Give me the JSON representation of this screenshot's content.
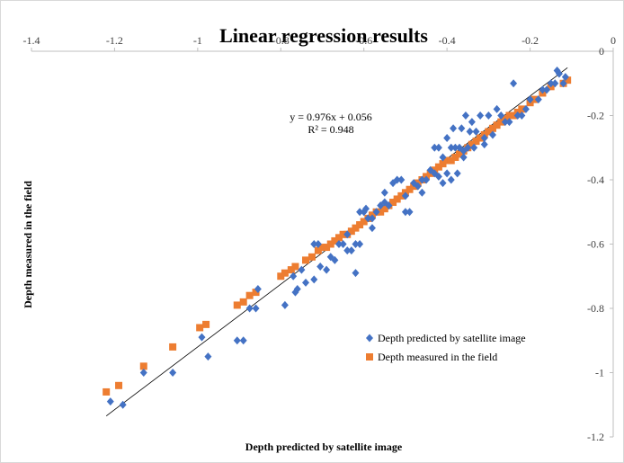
{
  "chart_data": {
    "type": "scatter",
    "title": "Linear regression results",
    "xlabel": "Depth predicted by satellite image",
    "ylabel": "Depth measured in the field",
    "xlim": [
      -1.4,
      0
    ],
    "ylim": [
      -1.2,
      0
    ],
    "x_ticks": [
      "-1.4",
      "-1.2",
      "-1",
      "-0.8",
      "-0.6",
      "-0.4",
      "-0.2",
      "0"
    ],
    "y_ticks": [
      "0",
      "-0.2",
      "-0.4",
      "-0.6",
      "-0.8",
      "-1",
      "-1.2"
    ],
    "x_axis_position": "top",
    "y_axis_position": "right",
    "grid": false,
    "legend_position": "bottom-right",
    "trendline": {
      "equation": "y = 0.976x + 0.056",
      "r2": "R² = 0.948",
      "slope": 0.976,
      "intercept": 0.056,
      "x_range": [
        -1.22,
        -0.11
      ]
    },
    "series": [
      {
        "name": "Depth predicted by satellite image",
        "color": "#4472c4",
        "marker": "diamond",
        "points": [
          [
            -1.21,
            -1.09
          ],
          [
            -1.18,
            -1.1
          ],
          [
            -1.13,
            -1.0
          ],
          [
            -1.06,
            -1.0
          ],
          [
            -0.99,
            -0.89
          ],
          [
            -0.975,
            -0.95
          ],
          [
            -0.905,
            -0.9
          ],
          [
            -0.89,
            -0.9
          ],
          [
            -0.875,
            -0.8
          ],
          [
            -0.86,
            -0.8
          ],
          [
            -0.855,
            -0.74
          ],
          [
            -0.79,
            -0.79
          ],
          [
            -0.77,
            -0.7
          ],
          [
            -0.765,
            -0.75
          ],
          [
            -0.76,
            -0.74
          ],
          [
            -0.75,
            -0.68
          ],
          [
            -0.74,
            -0.72
          ],
          [
            -0.72,
            -0.71
          ],
          [
            -0.72,
            -0.6
          ],
          [
            -0.71,
            -0.6
          ],
          [
            -0.705,
            -0.67
          ],
          [
            -0.69,
            -0.68
          ],
          [
            -0.68,
            -0.64
          ],
          [
            -0.67,
            -0.65
          ],
          [
            -0.66,
            -0.6
          ],
          [
            -0.65,
            -0.6
          ],
          [
            -0.64,
            -0.57
          ],
          [
            -0.63,
            -0.62
          ],
          [
            -0.62,
            -0.6
          ],
          [
            -0.61,
            -0.6
          ],
          [
            -0.62,
            -0.69
          ],
          [
            -0.61,
            -0.5
          ],
          [
            -0.6,
            -0.5
          ],
          [
            -0.595,
            -0.49
          ],
          [
            -0.59,
            -0.52
          ],
          [
            -0.58,
            -0.52
          ],
          [
            -0.57,
            -0.5
          ],
          [
            -0.56,
            -0.48
          ],
          [
            -0.55,
            -0.44
          ],
          [
            -0.54,
            -0.48
          ],
          [
            -0.53,
            -0.41
          ],
          [
            -0.52,
            -0.4
          ],
          [
            -0.51,
            -0.4
          ],
          [
            -0.5,
            -0.5
          ],
          [
            -0.49,
            -0.5
          ],
          [
            -0.48,
            -0.41
          ],
          [
            -0.47,
            -0.42
          ],
          [
            -0.46,
            -0.4
          ],
          [
            -0.45,
            -0.4
          ],
          [
            -0.44,
            -0.37
          ],
          [
            -0.43,
            -0.38
          ],
          [
            -0.43,
            -0.3
          ],
          [
            -0.42,
            -0.3
          ],
          [
            -0.41,
            -0.33
          ],
          [
            -0.41,
            -0.41
          ],
          [
            -0.4,
            -0.27
          ],
          [
            -0.4,
            -0.38
          ],
          [
            -0.39,
            -0.3
          ],
          [
            -0.39,
            -0.4
          ],
          [
            -0.385,
            -0.24
          ],
          [
            -0.38,
            -0.3
          ],
          [
            -0.375,
            -0.38
          ],
          [
            -0.37,
            -0.3
          ],
          [
            -0.365,
            -0.24
          ],
          [
            -0.36,
            -0.31
          ],
          [
            -0.355,
            -0.2
          ],
          [
            -0.35,
            -0.3
          ],
          [
            -0.345,
            -0.25
          ],
          [
            -0.34,
            -0.22
          ],
          [
            -0.335,
            -0.3
          ],
          [
            -0.33,
            -0.25
          ],
          [
            -0.32,
            -0.2
          ],
          [
            -0.31,
            -0.27
          ],
          [
            -0.3,
            -0.2
          ],
          [
            -0.29,
            -0.26
          ],
          [
            -0.28,
            -0.18
          ],
          [
            -0.27,
            -0.2
          ],
          [
            -0.26,
            -0.22
          ],
          [
            -0.25,
            -0.22
          ],
          [
            -0.24,
            -0.1
          ],
          [
            -0.23,
            -0.2
          ],
          [
            -0.22,
            -0.2
          ],
          [
            -0.21,
            -0.18
          ],
          [
            -0.2,
            -0.15
          ],
          [
            -0.18,
            -0.15
          ],
          [
            -0.17,
            -0.12
          ],
          [
            -0.16,
            -0.12
          ],
          [
            -0.15,
            -0.1
          ],
          [
            -0.14,
            -0.1
          ],
          [
            -0.135,
            -0.06
          ],
          [
            -0.13,
            -0.07
          ],
          [
            -0.12,
            -0.1
          ],
          [
            -0.115,
            -0.08
          ],
          [
            -0.46,
            -0.44
          ],
          [
            -0.5,
            -0.45
          ],
          [
            -0.55,
            -0.47
          ],
          [
            -0.58,
            -0.55
          ],
          [
            -0.64,
            -0.62
          ],
          [
            -0.42,
            -0.39
          ],
          [
            -0.36,
            -0.33
          ],
          [
            -0.31,
            -0.29
          ]
        ]
      },
      {
        "name": "Depth measured in the field",
        "color": "#ed7d31",
        "marker": "square",
        "points": [
          [
            -1.22,
            -1.06
          ],
          [
            -1.19,
            -1.04
          ],
          [
            -1.13,
            -0.98
          ],
          [
            -1.06,
            -0.92
          ],
          [
            -0.995,
            -0.86
          ],
          [
            -0.98,
            -0.85
          ],
          [
            -0.905,
            -0.79
          ],
          [
            -0.89,
            -0.78
          ],
          [
            -0.875,
            -0.76
          ],
          [
            -0.86,
            -0.75
          ],
          [
            -0.8,
            -0.7
          ],
          [
            -0.79,
            -0.69
          ],
          [
            -0.775,
            -0.68
          ],
          [
            -0.765,
            -0.67
          ],
          [
            -0.74,
            -0.65
          ],
          [
            -0.725,
            -0.64
          ],
          [
            -0.71,
            -0.62
          ],
          [
            -0.7,
            -0.61
          ],
          [
            -0.69,
            -0.61
          ],
          [
            -0.68,
            -0.6
          ],
          [
            -0.67,
            -0.59
          ],
          [
            -0.66,
            -0.58
          ],
          [
            -0.65,
            -0.57
          ],
          [
            -0.64,
            -0.57
          ],
          [
            -0.63,
            -0.56
          ],
          [
            -0.62,
            -0.55
          ],
          [
            -0.61,
            -0.54
          ],
          [
            -0.6,
            -0.53
          ],
          [
            -0.59,
            -0.52
          ],
          [
            -0.58,
            -0.51
          ],
          [
            -0.57,
            -0.5
          ],
          [
            -0.56,
            -0.5
          ],
          [
            -0.55,
            -0.49
          ],
          [
            -0.54,
            -0.48
          ],
          [
            -0.53,
            -0.47
          ],
          [
            -0.52,
            -0.46
          ],
          [
            -0.51,
            -0.45
          ],
          [
            -0.5,
            -0.44
          ],
          [
            -0.49,
            -0.43
          ],
          [
            -0.48,
            -0.42
          ],
          [
            -0.47,
            -0.41
          ],
          [
            -0.46,
            -0.4
          ],
          [
            -0.45,
            -0.39
          ],
          [
            -0.44,
            -0.38
          ],
          [
            -0.43,
            -0.37
          ],
          [
            -0.42,
            -0.36
          ],
          [
            -0.41,
            -0.35
          ],
          [
            -0.4,
            -0.34
          ],
          [
            -0.39,
            -0.34
          ],
          [
            -0.38,
            -0.33
          ],
          [
            -0.37,
            -0.32
          ],
          [
            -0.36,
            -0.31
          ],
          [
            -0.35,
            -0.3
          ],
          [
            -0.34,
            -0.29
          ],
          [
            -0.33,
            -0.28
          ],
          [
            -0.32,
            -0.27
          ],
          [
            -0.31,
            -0.26
          ],
          [
            -0.3,
            -0.25
          ],
          [
            -0.29,
            -0.24
          ],
          [
            -0.28,
            -0.23
          ],
          [
            -0.27,
            -0.22
          ],
          [
            -0.26,
            -0.21
          ],
          [
            -0.25,
            -0.2
          ],
          [
            -0.24,
            -0.2
          ],
          [
            -0.23,
            -0.19
          ],
          [
            -0.22,
            -0.18
          ],
          [
            -0.2,
            -0.16
          ],
          [
            -0.19,
            -0.15
          ],
          [
            -0.17,
            -0.13
          ],
          [
            -0.15,
            -0.11
          ],
          [
            -0.12,
            -0.1
          ],
          [
            -0.11,
            -0.09
          ]
        ]
      }
    ]
  }
}
